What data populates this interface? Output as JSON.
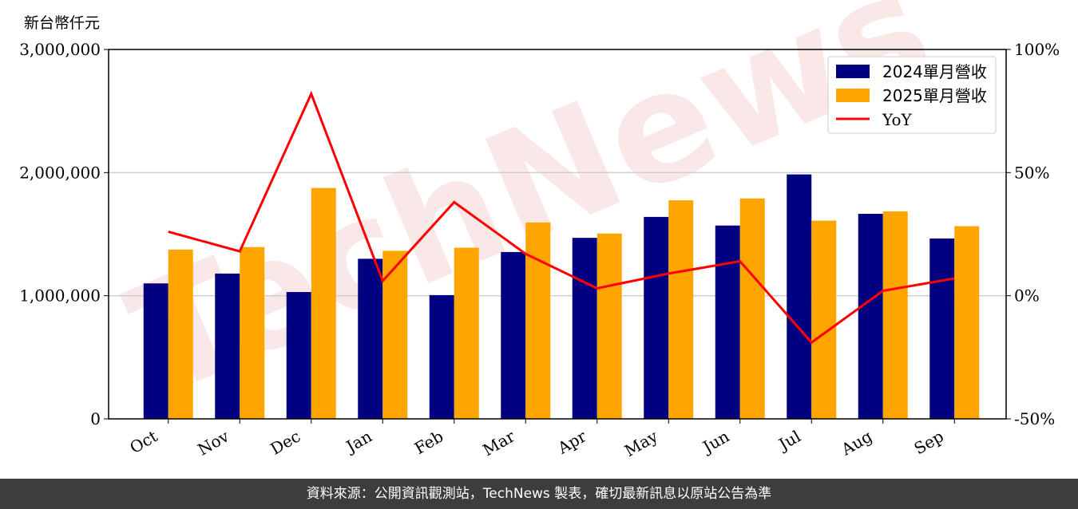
{
  "chart_data": {
    "type": "bar",
    "ylabel": "新台幣仟元",
    "categories": [
      "Oct",
      "Nov",
      "Dec",
      "Jan",
      "Feb",
      "Mar",
      "Apr",
      "May",
      "Jun",
      "Jul",
      "Aug",
      "Sep"
    ],
    "series": [
      {
        "name": "2024單月營收",
        "color": "#000080",
        "values": [
          1100000,
          1180000,
          1030000,
          1300000,
          1005000,
          1355000,
          1470000,
          1640000,
          1570000,
          1985000,
          1665000,
          1465000
        ]
      },
      {
        "name": "2025單月營收",
        "color": "#FFA500",
        "values": [
          1375000,
          1395000,
          1875000,
          1365000,
          1390000,
          1595000,
          1505000,
          1775000,
          1790000,
          1610000,
          1685000,
          1565000
        ]
      }
    ],
    "line_series": {
      "name": "YoY",
      "color": "#FF0000",
      "axis": "right",
      "values": [
        26,
        18,
        82,
        6,
        38,
        17,
        3,
        9,
        14,
        -19,
        2,
        7
      ]
    },
    "ylim": [
      0,
      3000000
    ],
    "yticks": [
      "0",
      "1,000,000",
      "2,000,000",
      "3,000,000"
    ],
    "y2lim": [
      -50,
      100
    ],
    "y2ticks": [
      "-50%",
      "0%",
      "50%",
      "100%"
    ],
    "grid": "horizontal",
    "legend": "top-right"
  },
  "watermark": "TechNews",
  "footer": "資料來源：公開資訊觀測站，TechNews 製表，確切最新訊息以原站公告為準"
}
